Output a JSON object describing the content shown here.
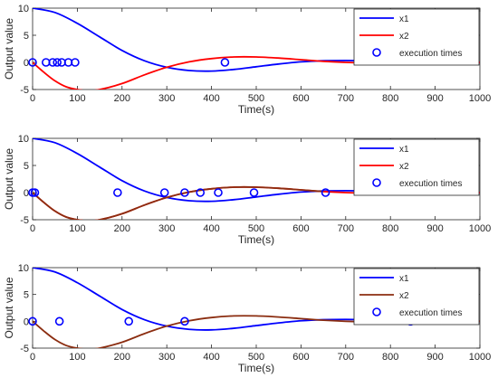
{
  "chart_data": [
    {
      "type": "line",
      "ylabel": "Output value",
      "xlabel": "Time(s)",
      "xlim": [
        0,
        1000
      ],
      "ylim": [
        -5,
        10
      ],
      "xticks": [
        0,
        100,
        200,
        300,
        400,
        500,
        600,
        700,
        800,
        900,
        1000
      ],
      "yticks": [
        -5,
        0,
        5,
        10
      ],
      "legend_position": "top-right",
      "series": [
        {
          "name": "x1",
          "color": "#0000ff",
          "style": "line",
          "x": [
            0,
            50,
            100,
            150,
            200,
            250,
            300,
            350,
            400,
            450,
            500,
            550,
            600,
            650,
            700,
            750,
            800,
            850,
            900,
            950,
            1000
          ],
          "y": [
            10,
            9.2,
            7.2,
            4.7,
            2.2,
            0.3,
            -0.9,
            -1.5,
            -1.6,
            -1.3,
            -0.8,
            -0.3,
            0.1,
            0.3,
            0.35,
            0.3,
            0.2,
            0.1,
            0.05,
            0.02,
            0
          ]
        },
        {
          "name": "x2",
          "color": "#ff0000",
          "style": "line",
          "x": [
            0,
            25,
            50,
            75,
            100,
            125,
            150,
            200,
            250,
            300,
            350,
            400,
            450,
            500,
            550,
            600,
            650,
            700,
            750,
            800,
            850,
            900,
            950,
            1000
          ],
          "y": [
            0,
            -1.8,
            -3.4,
            -4.5,
            -5.0,
            -5.2,
            -5.0,
            -3.9,
            -2.3,
            -0.9,
            0.1,
            0.7,
            1.0,
            1.0,
            0.8,
            0.5,
            0.2,
            0.0,
            -0.1,
            -0.1,
            -0.05,
            0,
            0,
            0
          ]
        },
        {
          "name": "execution times",
          "color": "#0000ff",
          "style": "marker",
          "x": [
            0,
            30,
            45,
            55,
            65,
            80,
            95,
            430
          ],
          "y": [
            0,
            0,
            0,
            0,
            0,
            0,
            0,
            0
          ]
        }
      ]
    },
    {
      "type": "line",
      "ylabel": "Output value",
      "xlabel": "Time(s)",
      "xlim": [
        0,
        1000
      ],
      "ylim": [
        -5,
        10
      ],
      "xticks": [
        0,
        100,
        200,
        300,
        400,
        500,
        600,
        700,
        800,
        900,
        1000
      ],
      "yticks": [
        -5,
        0,
        5,
        10
      ],
      "legend_position": "top-right",
      "series": [
        {
          "name": "x1",
          "color": "#0000ff",
          "style": "line",
          "x": [
            0,
            50,
            100,
            150,
            200,
            250,
            300,
            350,
            400,
            450,
            500,
            550,
            600,
            650,
            700,
            750,
            800,
            850,
            900,
            950,
            1000
          ],
          "y": [
            10,
            9.2,
            7.2,
            4.7,
            2.2,
            0.3,
            -0.9,
            -1.5,
            -1.6,
            -1.3,
            -0.8,
            -0.3,
            0.1,
            0.3,
            0.35,
            0.3,
            0.2,
            0.1,
            0.05,
            0.02,
            0
          ]
        },
        {
          "name": "x2",
          "color": "#ff0000",
          "style": "line",
          "x": [
            0,
            25,
            50,
            75,
            100,
            125,
            150,
            200,
            250,
            300,
            350,
            400,
            450,
            500,
            550,
            600,
            650,
            700,
            750,
            800,
            850,
            900,
            950,
            1000
          ],
          "y": [
            0,
            -1.8,
            -3.4,
            -4.5,
            -5.0,
            -5.2,
            -5.0,
            -3.9,
            -2.3,
            -0.9,
            0.1,
            0.7,
            1.0,
            1.0,
            0.8,
            0.5,
            0.2,
            0.0,
            -0.1,
            -0.1,
            -0.05,
            0,
            0,
            0
          ]
        },
        {
          "name": "",
          "color": "#8b2d10",
          "style": "line",
          "x": [
            0,
            25,
            50,
            75,
            100,
            125,
            150,
            200,
            250,
            300,
            350,
            400,
            450,
            500,
            550,
            600,
            650
          ],
          "y": [
            0,
            -1.8,
            -3.4,
            -4.5,
            -5.0,
            -5.2,
            -5.0,
            -3.9,
            -2.3,
            -0.9,
            0.1,
            0.7,
            1.0,
            1.0,
            0.8,
            0.5,
            0.2
          ]
        },
        {
          "name": "execution times",
          "color": "#0000ff",
          "style": "marker",
          "x": [
            0,
            5,
            190,
            295,
            340,
            375,
            415,
            495,
            655
          ],
          "y": [
            0,
            0,
            0,
            0,
            0,
            0,
            0,
            0,
            0
          ]
        }
      ]
    },
    {
      "type": "line",
      "ylabel": "Output value",
      "xlabel": "Time(s)",
      "xlim": [
        0,
        1000
      ],
      "ylim": [
        -5,
        10
      ],
      "xticks": [
        0,
        100,
        200,
        300,
        400,
        500,
        600,
        700,
        800,
        900,
        1000
      ],
      "yticks": [
        -5,
        0,
        5,
        10
      ],
      "legend_position": "top-right",
      "series": [
        {
          "name": "x1",
          "color": "#0000ff",
          "style": "line",
          "x": [
            0,
            50,
            100,
            150,
            200,
            250,
            300,
            350,
            400,
            450,
            500,
            550,
            600,
            650,
            700,
            750,
            800,
            850,
            900,
            950,
            1000
          ],
          "y": [
            10,
            9.2,
            7.2,
            4.7,
            2.2,
            0.3,
            -0.9,
            -1.5,
            -1.6,
            -1.3,
            -0.8,
            -0.3,
            0.1,
            0.3,
            0.35,
            0.3,
            0.2,
            0.1,
            0.05,
            0.02,
            0
          ]
        },
        {
          "name": "x2",
          "color": "#8b2d10",
          "style": "line",
          "x": [
            0,
            25,
            50,
            75,
            100,
            125,
            150,
            200,
            250,
            300,
            350,
            400,
            450,
            500,
            550,
            600,
            650,
            700,
            750,
            800,
            850,
            900,
            950,
            1000
          ],
          "y": [
            0,
            -1.8,
            -3.4,
            -4.5,
            -5.0,
            -5.2,
            -5.0,
            -3.9,
            -2.3,
            -0.9,
            0.1,
            0.7,
            1.0,
            1.0,
            0.8,
            0.5,
            0.2,
            0.0,
            -0.1,
            -0.1,
            -0.05,
            0,
            0,
            0
          ]
        },
        {
          "name": "execution times",
          "color": "#0000ff",
          "style": "marker",
          "x": [
            0,
            60,
            215,
            340,
            845
          ],
          "y": [
            0,
            0,
            0,
            0,
            0
          ]
        }
      ]
    }
  ]
}
